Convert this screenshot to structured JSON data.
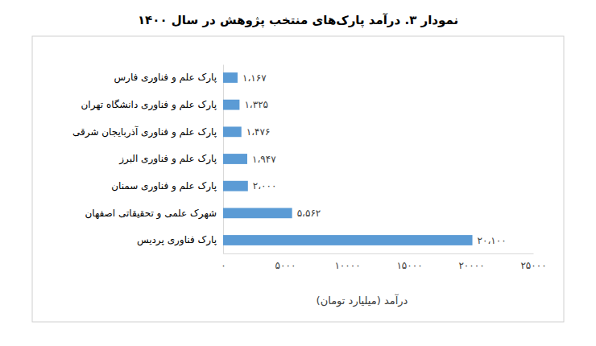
{
  "chart_data": {
    "type": "bar",
    "orientation": "horizontal",
    "title": "نمودار ۳. درآمد پارک‌های منتخب پژوهش در سال ۱۴۰۰",
    "x_label": "درآمد (میلیارد تومان)",
    "categories": [
      "پارک علم و فناوری فارس",
      "پارک علم و فناوری دانشگاه تهران",
      "پارک علم و فناوری آذربایجان شرقی",
      "پارک علم و فناوری البرز",
      "پارک علم و فناوری  سمنان",
      "شهرک علمی و تحقیقاتی اصفهان",
      "پارک فناوری پردیس"
    ],
    "values": [
      1167,
      1325,
      1476,
      1947,
      2000,
      5562,
      20100
    ],
    "value_labels": [
      "۱،۱۶۷",
      "۱،۳۲۵",
      "۱،۴۷۶",
      "۱،۹۴۷",
      "۲،۰۰۰",
      "۵،۵۶۲",
      "۲۰،۱۰۰"
    ],
    "color": "#5b9bd5",
    "data_labels": true,
    "grid": false,
    "xlim": [
      0,
      25000
    ],
    "xticks": [
      {
        "value": 0,
        "label": "۰"
      },
      {
        "value": 5000,
        "label": "۵۰۰۰"
      },
      {
        "value": 10000,
        "label": "۱۰۰۰۰"
      },
      {
        "value": 15000,
        "label": "۱۵۰۰۰"
      },
      {
        "value": 20000,
        "label": "۲۰۰۰۰"
      },
      {
        "value": 25000,
        "label": "۲۵۰۰۰"
      }
    ]
  }
}
